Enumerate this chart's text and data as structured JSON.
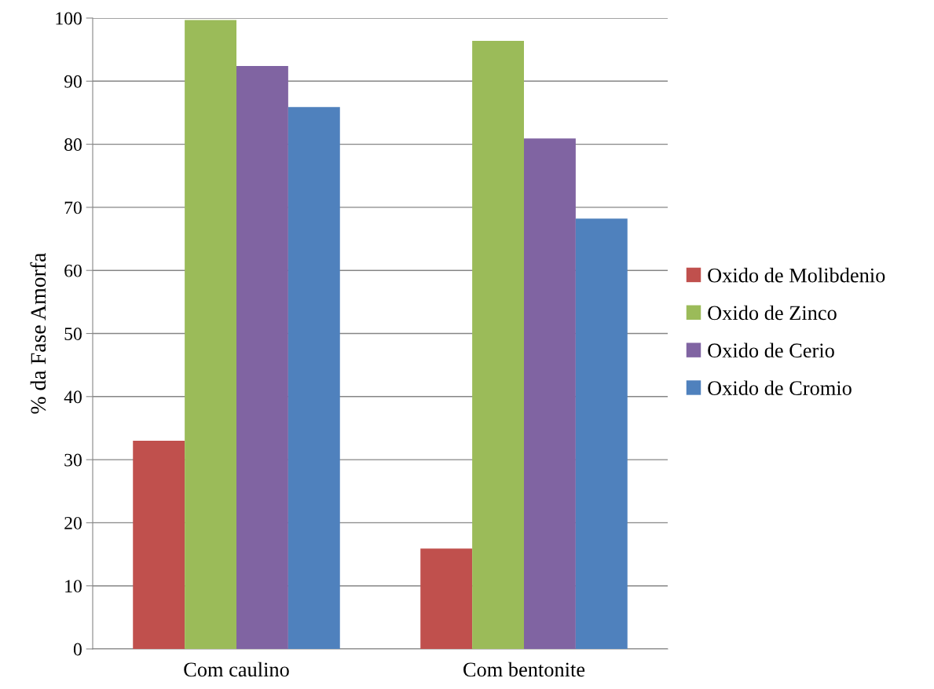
{
  "chart_data": {
    "type": "bar",
    "ylabel": "% da Fase Amorfa",
    "categories": [
      "Com caulino",
      "Com bentonite"
    ],
    "series": [
      {
        "name": "Oxido de Molibdenio",
        "color": "#c0504d",
        "values": [
          33.0,
          15.9
        ]
      },
      {
        "name": "Oxido de Zinco",
        "color": "#9bbb59",
        "values": [
          99.7,
          96.4
        ]
      },
      {
        "name": "Oxido de Cerio",
        "color": "#8064a2",
        "values": [
          92.4,
          80.9
        ]
      },
      {
        "name": "Oxido de Cromio",
        "color": "#4f81bd",
        "values": [
          85.9,
          68.2
        ]
      }
    ],
    "ylim": [
      0,
      100
    ],
    "yticks": [
      0,
      10,
      20,
      30,
      40,
      50,
      60,
      70,
      80,
      90,
      100
    ],
    "grid": "y",
    "legend": "right"
  }
}
